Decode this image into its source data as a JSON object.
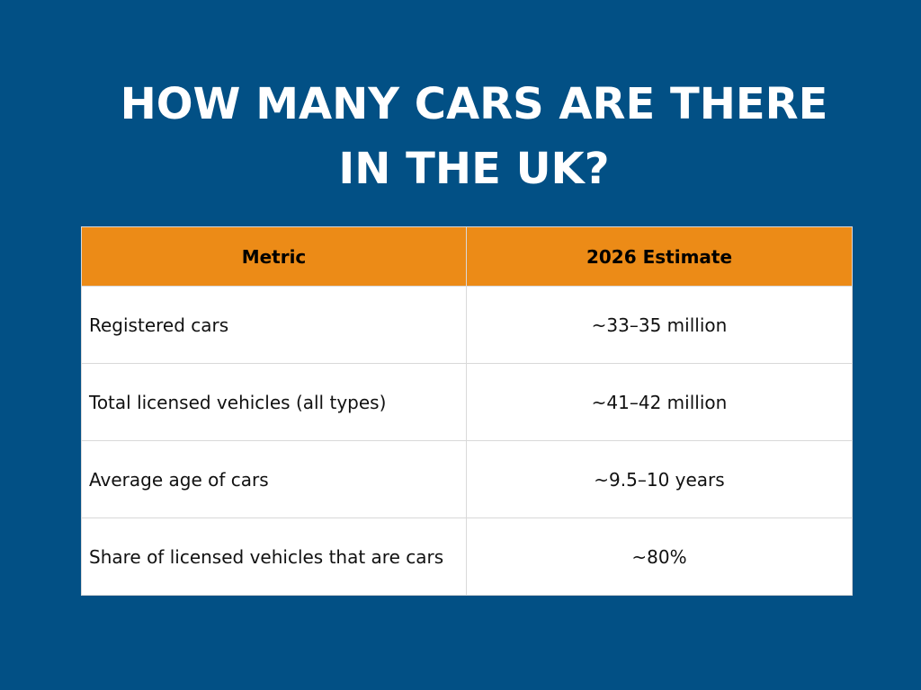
{
  "title": {
    "line1": "HOW MANY CARS ARE THERE",
    "line2": "IN THE UK?"
  },
  "table": {
    "headers": [
      "Metric",
      "2026 Estimate"
    ],
    "rows": [
      {
        "metric": "Registered cars",
        "value": "~33–35 million"
      },
      {
        "metric": "Total licensed vehicles (all types)",
        "value": "~41–42 million"
      },
      {
        "metric": "Average age of cars",
        "value": "~9.5–10 years"
      },
      {
        "metric": "Share of licensed vehicles that are cars",
        "value": "~80%"
      }
    ]
  },
  "colors": {
    "background": "#025085",
    "header": "#ec8b17",
    "title_text": "#ffffff"
  }
}
